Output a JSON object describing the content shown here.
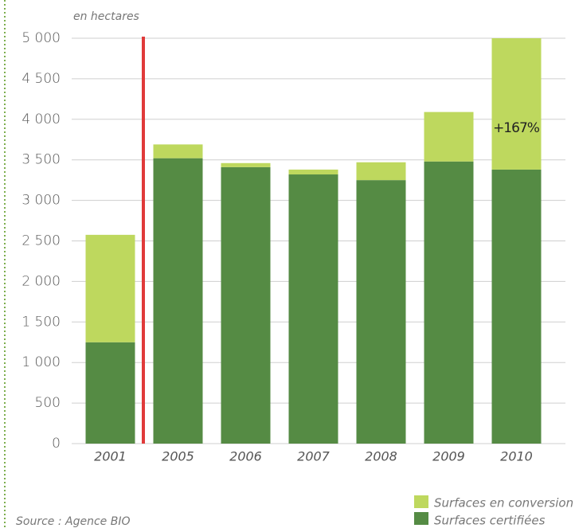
{
  "chart_data": {
    "type": "stacked_bar",
    "subtitle": "en hectares",
    "annotation": "+167%",
    "source": "Source : Agence BIO",
    "categories": [
      "2001",
      "2005",
      "2006",
      "2007",
      "2008",
      "2009",
      "2010"
    ],
    "series": [
      {
        "name": "Surfaces certifiées",
        "color": "#558b44",
        "values": [
          1250,
          3520,
          3410,
          3320,
          3250,
          3480,
          3380
        ]
      },
      {
        "name": "Surfaces en conversion",
        "color": "#bed85e",
        "values": [
          1325,
          170,
          50,
          60,
          220,
          610,
          1620
        ]
      }
    ],
    "ylim": [
      0,
      5000
    ],
    "yticks": [
      0,
      500,
      {
        "value": 1000,
        "label": "1 000"
      },
      {
        "value": 1500,
        "label": "1 500"
      },
      {
        "value": 2000,
        "label": "2 000"
      },
      {
        "value": 2500,
        "label": "2 500"
      },
      {
        "value": 3000,
        "label": "3 000"
      },
      {
        "value": 3500,
        "label": "3 500"
      },
      {
        "value": 4000,
        "label": "4 000"
      },
      {
        "value": 4500,
        "label": "4 500"
      },
      {
        "value": 5000,
        "label": "5 000"
      }
    ],
    "grid": true
  }
}
